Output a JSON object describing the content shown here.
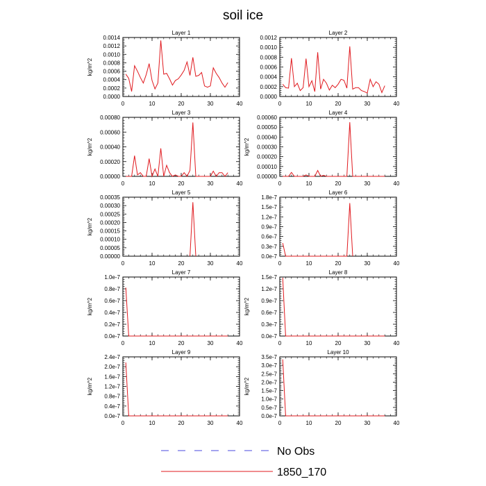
{
  "figure": {
    "title": "soil ice",
    "legend": [
      {
        "label": "No Obs",
        "color": "#4a4adf",
        "style": "dashed"
      },
      {
        "label": "1850_170",
        "color": "#e0191e",
        "style": "solid"
      }
    ]
  },
  "chart_data": [
    {
      "type": "line",
      "title": "Layer 1",
      "ylabel": "kg/m^2",
      "xlim": [
        0,
        40
      ],
      "ylim": [
        0,
        0.0014
      ],
      "yticks": [
        "0.0000",
        "0.0002",
        "0.0004",
        "0.0006",
        "0.0008",
        "0.0010",
        "0.0012",
        "0.0014"
      ],
      "xticks": [
        "0",
        "10",
        "20",
        "30",
        "40"
      ],
      "series": [
        {
          "name": "1850_170",
          "color": "#e0191e",
          "x": [
            1,
            2,
            3,
            4,
            5,
            6,
            7,
            8,
            9,
            10,
            11,
            12,
            13,
            14,
            15,
            16,
            17,
            18,
            19,
            20,
            21,
            22,
            23,
            24,
            25,
            26,
            27,
            28,
            29,
            30,
            31,
            32,
            33,
            34,
            35,
            36
          ],
          "y": [
            0.00053,
            0.00043,
            0.00012,
            0.00073,
            0.0006,
            0.00045,
            0.00032,
            0.00052,
            0.00078,
            0.00038,
            0.00018,
            0.00032,
            0.00133,
            0.00053,
            0.00055,
            0.00042,
            0.00027,
            0.00038,
            0.00042,
            0.00051,
            0.00062,
            0.00082,
            0.0005,
            0.00093,
            0.00048,
            0.0005,
            0.00057,
            0.00025,
            0.00022,
            0.00025,
            0.00068,
            0.00055,
            0.00045,
            0.00032,
            0.00022,
            0.00033
          ]
        }
      ]
    },
    {
      "type": "line",
      "title": "Layer 2",
      "ylabel": "",
      "xlim": [
        0,
        40
      ],
      "ylim": [
        0,
        0.0012
      ],
      "yticks": [
        "0.0000",
        "0.0002",
        "0.0004",
        "0.0006",
        "0.0008",
        "0.0010",
        "0.0012"
      ],
      "xticks": [
        "0",
        "10",
        "20",
        "30",
        "40"
      ],
      "series": [
        {
          "name": "1850_170",
          "color": "#e0191e",
          "x": [
            1,
            2,
            3,
            4,
            5,
            6,
            7,
            8,
            9,
            10,
            11,
            12,
            13,
            14,
            15,
            16,
            17,
            18,
            19,
            20,
            21,
            22,
            23,
            24,
            25,
            26,
            27,
            28,
            29,
            30,
            31,
            32,
            33,
            34,
            35,
            36
          ],
          "y": [
            0.00025,
            0.00018,
            0.00017,
            0.00078,
            0.0002,
            0.00027,
            0.00012,
            0.00018,
            0.00077,
            0.0002,
            0.00032,
            0.0001,
            0.0009,
            0.00015,
            0.00035,
            0.00027,
            0.00013,
            0.00023,
            0.00018,
            0.00025,
            0.00035,
            0.00033,
            0.00017,
            0.00102,
            0.00015,
            0.00018,
            0.00018,
            0.00012,
            0.0001,
            7e-05,
            0.00035,
            0.0002,
            0.0003,
            0.00025,
            8e-05,
            0.00022
          ]
        }
      ]
    },
    {
      "type": "line",
      "title": "Layer 3",
      "ylabel": "kg/m^2",
      "xlim": [
        0,
        40
      ],
      "ylim": [
        0,
        0.0008
      ],
      "yticks": [
        "0.00000",
        "0.00020",
        "0.00040",
        "0.00060",
        "0.00080"
      ],
      "xticks": [
        "0",
        "10",
        "20",
        "30",
        "40"
      ],
      "series": [
        {
          "name": "1850_170",
          "color": "#e0191e",
          "x": [
            1,
            2,
            3,
            4,
            5,
            6,
            7,
            8,
            9,
            10,
            11,
            12,
            13,
            14,
            15,
            16,
            17,
            18,
            19,
            20,
            21,
            22,
            23,
            24,
            25,
            26,
            27,
            28,
            29,
            30,
            31,
            32,
            33,
            34,
            35,
            36
          ],
          "y": [
            0,
            0,
            0,
            0.00028,
            2e-05,
            5e-05,
            0,
            0,
            0.00024,
            0,
            0.0001,
            0,
            0.00038,
            0,
            0.00015,
            5e-05,
            0,
            2e-05,
            0,
            0,
            5e-05,
            0,
            8e-05,
            0.00073,
            0,
            0,
            0,
            0,
            0,
            0,
            7e-05,
            0,
            5e-05,
            5e-05,
            0,
            5e-05
          ]
        }
      ]
    },
    {
      "type": "line",
      "title": "Layer 4",
      "ylabel": "kg/m^2",
      "xlim": [
        0,
        40
      ],
      "ylim": [
        0,
        0.0006
      ],
      "yticks": [
        "0.00000",
        "0.00010",
        "0.00020",
        "0.00030",
        "0.00040",
        "0.00050",
        "0.00060"
      ],
      "xticks": [
        "0",
        "10",
        "20",
        "30",
        "40"
      ],
      "series": [
        {
          "name": "1850_170",
          "color": "#e0191e",
          "x": [
            1,
            2,
            3,
            4,
            5,
            6,
            7,
            8,
            9,
            10,
            11,
            12,
            13,
            14,
            15,
            16,
            17,
            18,
            19,
            20,
            21,
            22,
            23,
            24,
            25,
            26,
            27,
            28,
            29,
            30,
            31,
            32,
            33,
            34,
            35,
            36
          ],
          "y": [
            0,
            0,
            0,
            4e-05,
            0,
            0,
            0,
            0,
            1.5e-05,
            0,
            0,
            0,
            6e-05,
            0,
            1e-05,
            0,
            0,
            0,
            0,
            0,
            0,
            0,
            0,
            0.00055,
            0,
            0,
            0,
            0,
            0,
            0,
            0,
            0,
            0,
            0,
            0,
            0
          ]
        }
      ]
    },
    {
      "type": "line",
      "title": "Layer 5",
      "ylabel": "kg/m^2",
      "xlim": [
        0,
        40
      ],
      "ylim": [
        0,
        0.00035
      ],
      "yticks": [
        "0.00000",
        "0.00005",
        "0.00010",
        "0.00015",
        "0.00020",
        "0.00025",
        "0.00030",
        "0.00035"
      ],
      "xticks": [
        "0",
        "10",
        "20",
        "30",
        "40"
      ],
      "series": [
        {
          "name": "1850_170",
          "color": "#e0191e",
          "x": [
            23,
            24,
            25
          ],
          "y": [
            0,
            0.00032,
            0
          ]
        }
      ]
    },
    {
      "type": "line",
      "title": "Layer 6",
      "ylabel": "",
      "xlim": [
        0,
        40
      ],
      "ylim": [
        0,
        1.8e-07
      ],
      "yticks": [
        "0.0e-7",
        "0.3e-7",
        "0.6e-7",
        "0.9e-7",
        "1.2e-7",
        "1.5e-7",
        "1.8e-7"
      ],
      "xticks": [
        "0",
        "10",
        "20",
        "30",
        "40"
      ],
      "series": [
        {
          "name": "1850_170",
          "color": "#e0191e",
          "x": [
            1,
            2,
            23,
            24,
            25
          ],
          "y": [
            4e-08,
            0,
            0,
            1.62e-07,
            0
          ]
        }
      ]
    },
    {
      "type": "line",
      "title": "Layer 7",
      "ylabel": "kg/m^2",
      "xlim": [
        0,
        40
      ],
      "ylim": [
        0,
        1e-07
      ],
      "yticks": [
        "0.0e-7",
        "0.2e-7",
        "0.4e-7",
        "0.6e-7",
        "0.8e-7",
        "1.0e-7"
      ],
      "xticks": [
        "0",
        "10",
        "20",
        "30",
        "40"
      ],
      "series": [
        {
          "name": "1850_170",
          "color": "#e0191e",
          "x": [
            1,
            2,
            36
          ],
          "y": [
            8.2e-08,
            0,
            0
          ]
        }
      ]
    },
    {
      "type": "line",
      "title": "Layer 8",
      "ylabel": "kg/m^2",
      "xlim": [
        0,
        40
      ],
      "ylim": [
        0,
        1.5e-07
      ],
      "yticks": [
        "0.0e-7",
        "0.3e-7",
        "0.6e-7",
        "0.9e-7",
        "1.2e-7",
        "1.5e-7"
      ],
      "xticks": [
        "0",
        "10",
        "20",
        "30",
        "40"
      ],
      "series": [
        {
          "name": "1850_170",
          "color": "#e0191e",
          "x": [
            1,
            2,
            36
          ],
          "y": [
            1.48e-07,
            0,
            0
          ]
        }
      ]
    },
    {
      "type": "line",
      "title": "Layer 9",
      "ylabel": "kg/m^2",
      "xlim": [
        0,
        40
      ],
      "ylim": [
        0,
        2.4e-07
      ],
      "yticks": [
        "0.0e-7",
        "0.4e-7",
        "0.8e-7",
        "1.2e-7",
        "1.6e-7",
        "2.0e-7",
        "2.4e-7"
      ],
      "xticks": [
        "0",
        "10",
        "20",
        "30",
        "40"
      ],
      "series": [
        {
          "name": "1850_170",
          "color": "#e0191e",
          "x": [
            1,
            2,
            36
          ],
          "y": [
            2.17e-07,
            0,
            0
          ]
        }
      ]
    },
    {
      "type": "line",
      "title": "Layer 10",
      "ylabel": "kg/m^2",
      "xlim": [
        0,
        40
      ],
      "ylim": [
        0,
        3.5e-07
      ],
      "yticks": [
        "0.0e-7",
        "0.5e-7",
        "1.0e-7",
        "1.5e-7",
        "2.0e-7",
        "2.5e-7",
        "3.0e-7",
        "3.5e-7"
      ],
      "xticks": [
        "0",
        "10",
        "20",
        "30",
        "40"
      ],
      "series": [
        {
          "name": "1850_170",
          "color": "#e0191e",
          "x": [
            1,
            2,
            36
          ],
          "y": [
            3.35e-07,
            0,
            0
          ]
        }
      ]
    }
  ]
}
